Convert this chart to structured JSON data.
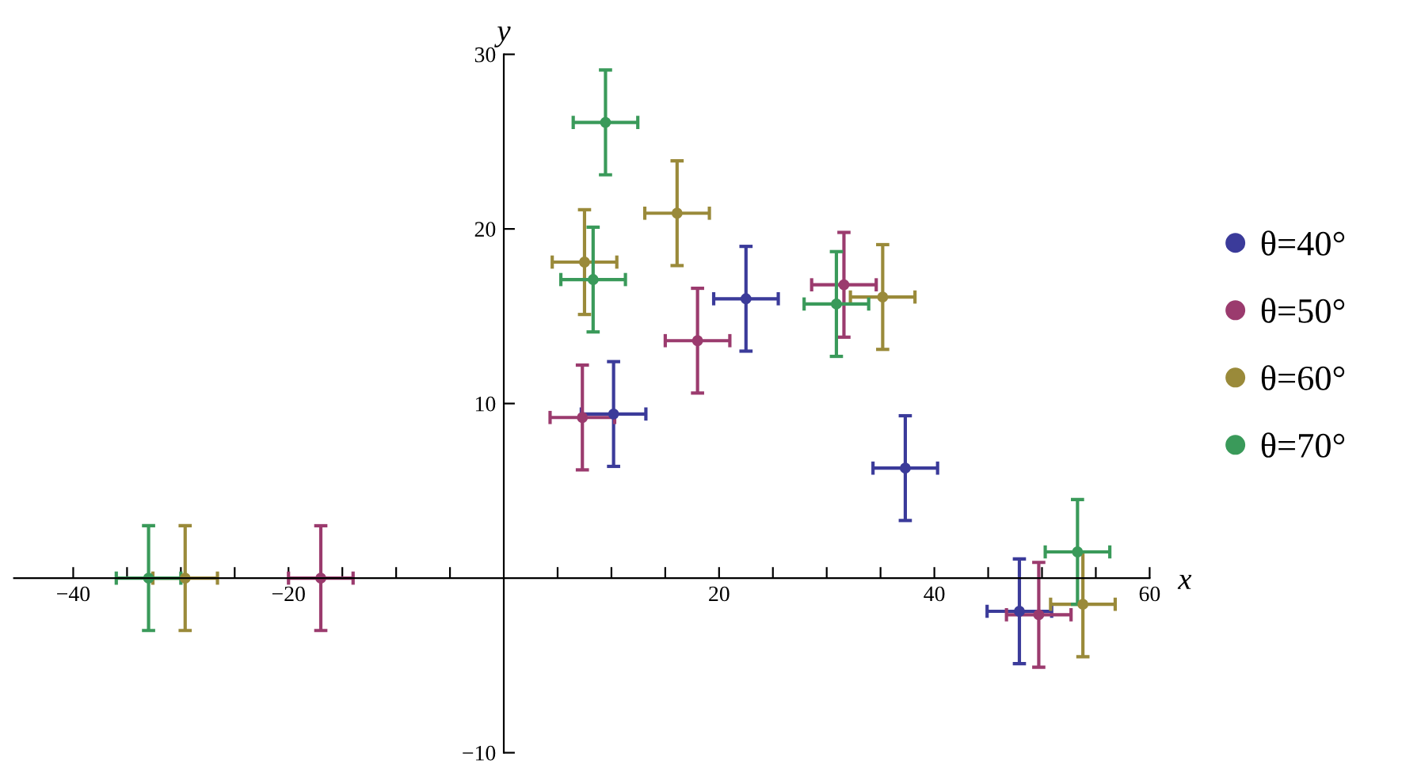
{
  "chart_data": {
    "type": "scatter",
    "xlabel": "x",
    "ylabel": "y",
    "xlim": [
      -45.5,
      60
    ],
    "ylim": [
      -10,
      30
    ],
    "xticks": [
      -40,
      {
        "value": -35,
        "label": null
      },
      {
        "value": -30,
        "label": null
      },
      {
        "value": -25,
        "label": null
      },
      -20,
      {
        "value": -15,
        "label": null
      },
      {
        "value": -10,
        "label": null
      },
      {
        "value": -5,
        "label": null
      },
      {
        "value": 5,
        "label": null
      },
      {
        "value": 10,
        "label": null
      },
      {
        "value": 15,
        "label": null
      },
      20,
      {
        "value": 25,
        "label": null
      },
      {
        "value": 30,
        "label": null
      },
      {
        "value": 35,
        "label": null
      },
      40,
      {
        "value": 45,
        "label": null
      },
      {
        "value": 50,
        "label": null
      },
      {
        "value": 55,
        "label": null
      },
      60
    ],
    "yticks": [
      -10,
      10,
      20,
      30
    ],
    "legend": "right",
    "marker": "circle",
    "grid": false,
    "series": [
      {
        "name": "θ=40°",
        "color": "#3b3b9a",
        "x": [
          10.2,
          22.5,
          37.3,
          47.9
        ],
        "values": [
          9.4,
          16.0,
          6.3,
          -1.9
        ],
        "errors": [
          3,
          3,
          3,
          3
        ],
        "xerrors": [
          3,
          3,
          3,
          3
        ]
      },
      {
        "name": "θ=50°",
        "color": "#9b3b6e",
        "x": [
          -17.0,
          7.3,
          18.0,
          31.6,
          49.7
        ],
        "values": [
          0,
          9.2,
          13.6,
          16.8,
          -2.1
        ],
        "errors": [
          3,
          3,
          3,
          3,
          3
        ],
        "xerrors": [
          3,
          3,
          3,
          3,
          3
        ]
      },
      {
        "name": "θ=60°",
        "color": "#9a8a3a",
        "x": [
          -29.6,
          7.5,
          16.1,
          35.2,
          53.8
        ],
        "values": [
          0,
          18.1,
          20.9,
          16.1,
          -1.5
        ],
        "errors": [
          3,
          3,
          3,
          3,
          3
        ],
        "xerrors": [
          3,
          3,
          3,
          3,
          3
        ]
      },
      {
        "name": "θ=70°",
        "color": "#3a9a5a",
        "x": [
          -33.0,
          8.3,
          9.45,
          30.9,
          53.3
        ],
        "values": [
          0,
          17.1,
          26.1,
          15.7,
          1.5
        ],
        "errors": [
          3,
          3,
          3,
          3,
          3
        ],
        "xerrors": [
          3,
          3,
          3,
          3,
          3
        ]
      }
    ]
  }
}
